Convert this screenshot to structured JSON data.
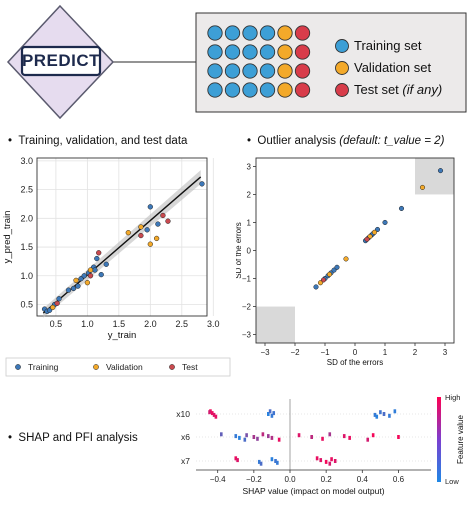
{
  "header": {
    "predict_label": "PREDICT",
    "legend": [
      {
        "label": "Training set",
        "color": "#3d9fd6"
      },
      {
        "label": "Validation set",
        "color": "#f3a92a"
      },
      {
        "label": "Test set",
        "note": "(if any)",
        "color": "#d83c4a"
      }
    ],
    "grid_colors": [
      [
        "#3d9fd6",
        "#3d9fd6",
        "#3d9fd6",
        "#3d9fd6",
        "#f3a92a",
        "#d83c4a"
      ],
      [
        "#3d9fd6",
        "#3d9fd6",
        "#3d9fd6",
        "#3d9fd6",
        "#f3a92a",
        "#d83c4a"
      ],
      [
        "#3d9fd6",
        "#3d9fd6",
        "#3d9fd6",
        "#3d9fd6",
        "#f3a92a",
        "#d83c4a"
      ],
      [
        "#3d9fd6",
        "#3d9fd6",
        "#3d9fd6",
        "#3d9fd6",
        "#f3a92a",
        "#d83c4a"
      ]
    ]
  },
  "sections": {
    "train_title": "Training, validation, and test data",
    "outlier_title": "Outlier analysis",
    "outlier_note": "(default: t_value = 2)",
    "shap_title": "SHAP and PFI analysis",
    "bullet": "•"
  },
  "chart_data": [
    {
      "type": "scatter",
      "xlabel": "y_train",
      "ylabel": "y_pred_train",
      "xlim": [
        0.2,
        2.9
      ],
      "ylim": [
        0.3,
        3.05
      ],
      "xticks": [
        "0.5",
        "1.0",
        "1.5",
        "2.0",
        "2.5",
        "3.0"
      ],
      "xtick_values": [
        0.5,
        1.0,
        1.5,
        2.0,
        2.5,
        3.0
      ],
      "yticks": [
        "0.5",
        "1.0",
        "1.5",
        "2.0",
        "2.5",
        "3.0"
      ],
      "ytick_values": [
        0.5,
        1.0,
        1.5,
        2.0,
        2.5,
        3.0
      ],
      "fit_line": {
        "x": [
          0.3,
          2.8
        ],
        "y": [
          0.35,
          2.72
        ]
      },
      "legend": [
        "Training",
        "Validation",
        "Test"
      ],
      "series": [
        {
          "name": "Training",
          "color": "#3d78b8",
          "points": [
            [
              0.32,
              0.42
            ],
            [
              0.36,
              0.38
            ],
            [
              0.4,
              0.4
            ],
            [
              0.48,
              0.5
            ],
            [
              0.55,
              0.6
            ],
            [
              0.7,
              0.75
            ],
            [
              0.78,
              0.78
            ],
            [
              0.85,
              0.82
            ],
            [
              0.9,
              0.95
            ],
            [
              0.95,
              1.0
            ],
            [
              1.02,
              1.05
            ],
            [
              1.1,
              1.15
            ],
            [
              1.12,
              1.1
            ],
            [
              1.15,
              1.3
            ],
            [
              1.22,
              1.02
            ],
            [
              1.3,
              1.2
            ],
            [
              1.95,
              1.8
            ],
            [
              2.0,
              2.2
            ],
            [
              2.12,
              1.9
            ],
            [
              2.82,
              2.6
            ]
          ]
        },
        {
          "name": "Validation",
          "color": "#f3a92a",
          "points": [
            [
              0.45,
              0.45
            ],
            [
              0.82,
              0.92
            ],
            [
              1.0,
              0.88
            ],
            [
              1.05,
              1.1
            ],
            [
              1.65,
              1.75
            ],
            [
              1.85,
              1.85
            ],
            [
              2.0,
              1.55
            ],
            [
              2.1,
              1.65
            ]
          ]
        },
        {
          "name": "Test",
          "color": "#c94a4f",
          "points": [
            [
              0.52,
              0.52
            ],
            [
              1.05,
              1.0
            ],
            [
              1.18,
              1.4
            ],
            [
              1.85,
              1.7
            ],
            [
              2.2,
              2.05
            ],
            [
              2.28,
              1.95
            ]
          ]
        }
      ]
    },
    {
      "type": "scatter",
      "xlabel": "SD of the errors",
      "ylabel": "SD of the errors",
      "xlim": [
        -3.3,
        3.3
      ],
      "ylim": [
        -3.3,
        3.3
      ],
      "xticks": [
        "−3",
        "−2",
        "−1",
        "0",
        "1",
        "2",
        "3"
      ],
      "xtick_values": [
        -3,
        -2,
        -1,
        0,
        1,
        2,
        3
      ],
      "yticks": [
        "−3",
        "−2",
        "−1",
        "0",
        "1",
        "2",
        "3"
      ],
      "ytick_values": [
        -3,
        -2,
        -1,
        0,
        1,
        2,
        3
      ],
      "threshold": 2,
      "series": [
        {
          "name": "Training",
          "color": "#3d78b8",
          "points": [
            [
              -1.3,
              -1.3
            ],
            [
              -1.0,
              -1.0
            ],
            [
              -0.9,
              -0.9
            ],
            [
              -0.8,
              -0.8
            ],
            [
              -0.7,
              -0.7
            ],
            [
              -0.6,
              -0.6
            ],
            [
              0.35,
              0.35
            ],
            [
              0.45,
              0.45
            ],
            [
              0.55,
              0.55
            ],
            [
              0.6,
              0.6
            ],
            [
              0.75,
              0.75
            ],
            [
              1.0,
              1.0
            ],
            [
              1.55,
              1.5
            ],
            [
              2.85,
              2.85
            ]
          ]
        },
        {
          "name": "Validation",
          "color": "#f3a92a",
          "points": [
            [
              -1.15,
              -1.15
            ],
            [
              -0.85,
              -0.85
            ],
            [
              -0.3,
              -0.3
            ],
            [
              0.5,
              0.5
            ],
            [
              0.65,
              0.65
            ],
            [
              2.25,
              2.25
            ]
          ]
        },
        {
          "name": "Test",
          "color": "#c94a4f",
          "points": [
            [
              -1.05,
              -1.05
            ],
            [
              0.4,
              0.4
            ]
          ]
        }
      ]
    },
    {
      "type": "scatter",
      "xlabel": "SHAP value (impact on model output)",
      "features": [
        "x10",
        "x6",
        "x7"
      ],
      "xlim": [
        -0.52,
        0.78
      ],
      "xticks": [
        "−0.4",
        "−0.2",
        "0.0",
        "0.2",
        "0.4",
        "0.6"
      ],
      "xtick_values": [
        -0.4,
        -0.2,
        0.0,
        0.2,
        0.4,
        0.6
      ],
      "colorbar": {
        "title": "Feature value",
        "high": "High",
        "low": "Low"
      },
      "series": [
        {
          "name": "x10",
          "points": [
            [
              -0.44,
              0.95
            ],
            [
              -0.43,
              0.9
            ],
            [
              -0.42,
              0.85
            ],
            [
              -0.41,
              0.88
            ],
            [
              -0.445,
              0.8
            ],
            [
              -0.12,
              0.05
            ],
            [
              -0.1,
              0.1
            ],
            [
              -0.11,
              0.2
            ],
            [
              -0.09,
              0.15
            ],
            [
              0.47,
              0.1
            ],
            [
              0.48,
              0.05
            ],
            [
              0.5,
              0.15
            ],
            [
              0.52,
              0.2
            ],
            [
              0.55,
              0.1
            ],
            [
              0.58,
              0.08
            ]
          ]
        },
        {
          "name": "x6",
          "points": [
            [
              -0.38,
              0.3
            ],
            [
              -0.3,
              0.1
            ],
            [
              -0.28,
              0.05
            ],
            [
              -0.25,
              0.2
            ],
            [
              -0.24,
              0.4
            ],
            [
              -0.2,
              0.6
            ],
            [
              -0.18,
              0.5
            ],
            [
              -0.15,
              0.7
            ],
            [
              -0.12,
              0.55
            ],
            [
              -0.1,
              0.65
            ],
            [
              -0.06,
              0.9
            ],
            [
              0.05,
              0.85
            ],
            [
              0.12,
              0.7
            ],
            [
              0.18,
              0.9
            ],
            [
              0.22,
              0.6
            ],
            [
              0.3,
              0.85
            ],
            [
              0.33,
              0.9
            ],
            [
              0.43,
              0.8
            ],
            [
              0.46,
              0.95
            ],
            [
              0.6,
              0.95
            ]
          ]
        },
        {
          "name": "x7",
          "points": [
            [
              -0.3,
              0.9
            ],
            [
              -0.29,
              0.85
            ],
            [
              -0.17,
              0.1
            ],
            [
              -0.16,
              0.2
            ],
            [
              -0.1,
              0.05
            ],
            [
              -0.08,
              0.15
            ],
            [
              -0.07,
              0.1
            ],
            [
              0.15,
              0.9
            ],
            [
              0.17,
              0.85
            ],
            [
              0.2,
              0.95
            ],
            [
              0.22,
              0.8
            ],
            [
              0.23,
              0.9
            ],
            [
              0.25,
              0.85
            ]
          ]
        }
      ]
    }
  ]
}
